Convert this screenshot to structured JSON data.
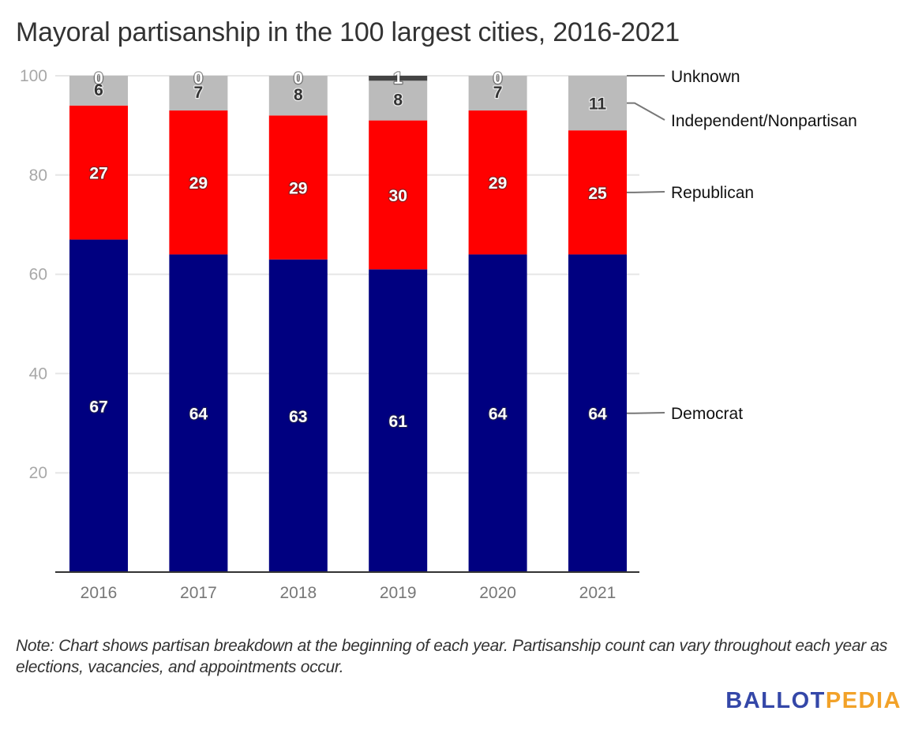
{
  "chart_data": {
    "type": "bar",
    "stacked": true,
    "title": "Mayoral partisanship in the 100 largest cities, 2016-2021",
    "xlabel": "",
    "ylabel": "",
    "ylim": [
      0,
      100
    ],
    "yticks": [
      20,
      40,
      60,
      80,
      100
    ],
    "grid": true,
    "legend_placement": "right (direct labels)",
    "categories": [
      "2016",
      "2017",
      "2018",
      "2019",
      "2020",
      "2021"
    ],
    "series": [
      {
        "name": "Democrat",
        "color": "#000080",
        "label_color": "#ffffff",
        "values": [
          67,
          64,
          63,
          61,
          64,
          64
        ]
      },
      {
        "name": "Republican",
        "color": "#ff0000",
        "label_color": "#ffffff",
        "values": [
          27,
          29,
          29,
          30,
          29,
          25
        ]
      },
      {
        "name": "Independent/Nonpartisan",
        "color": "#bbbbbb",
        "label_color": "#333333",
        "values": [
          6,
          7,
          8,
          8,
          7,
          11
        ]
      },
      {
        "name": "Unknown",
        "color": "#444444",
        "label_color": "#ffffff",
        "values": [
          0,
          0,
          0,
          1,
          0,
          0
        ]
      }
    ],
    "value_labels_shown": [
      [
        true,
        true,
        true,
        true,
        true,
        true
      ],
      [
        true,
        true,
        true,
        true,
        true,
        true
      ],
      [
        true,
        true,
        true,
        true,
        true,
        true
      ],
      [
        true,
        true,
        true,
        true,
        true,
        false
      ]
    ]
  },
  "note": "Note: Chart shows partisan breakdown at the beginning of each year. Partisanship count can vary throughout each year as elections, vacancies, and appointments occur.",
  "logo": {
    "part1": "BALLOT",
    "part2": "PEDIA"
  }
}
